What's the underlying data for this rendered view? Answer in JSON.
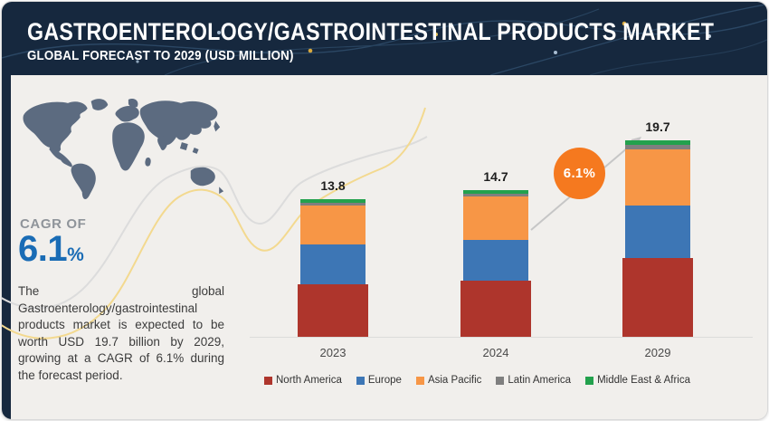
{
  "header": {
    "title": "GASTROENTEROLOGY/GASTROINTESTINAL PRODUCTS MARKET",
    "subtitle": "GLOBAL FORECAST TO 2029 (USD MILLION)"
  },
  "sidebar": {
    "cagr_label": "CAGR OF",
    "cagr_value": "6.1",
    "cagr_unit": "%",
    "description": "The global Gastroenterology/gastrointestinal products market is expected to be worth USD 19.7 billion by 2029, growing at a CAGR of 6.1% during the forecast period."
  },
  "chart_data": {
    "type": "bar",
    "stacked": true,
    "title": "Gastroenterology/Gastrointestinal Products Market, Global Forecast (USD Million)",
    "categories": [
      "2023",
      "2024",
      "2029"
    ],
    "totals": [
      13.8,
      14.7,
      19.7
    ],
    "series": [
      {
        "name": "North America",
        "color": "#ae352c",
        "values": [
          5.3,
          5.6,
          7.9
        ]
      },
      {
        "name": "Europe",
        "color": "#3d76b5",
        "values": [
          4.0,
          4.1,
          5.3
        ]
      },
      {
        "name": "Asia Pacific",
        "color": "#f79646",
        "values": [
          3.9,
          4.35,
          5.6
        ]
      },
      {
        "name": "Latin America",
        "color": "#7f7f7f",
        "values": [
          0.27,
          0.27,
          0.45
        ]
      },
      {
        "name": "Middle East & Africa",
        "color": "#23a14d",
        "values": [
          0.33,
          0.38,
          0.45
        ]
      }
    ],
    "annotation": {
      "label": "6.1%",
      "color": "#f5791f"
    },
    "legend_position": "bottom",
    "grid": false,
    "ylabel": "",
    "xlabel": ""
  },
  "colors": {
    "header_navy": "#16283e",
    "accent_blue": "#1a6cb5",
    "background": "#f1efec",
    "map_slate": "#5c6b80"
  }
}
